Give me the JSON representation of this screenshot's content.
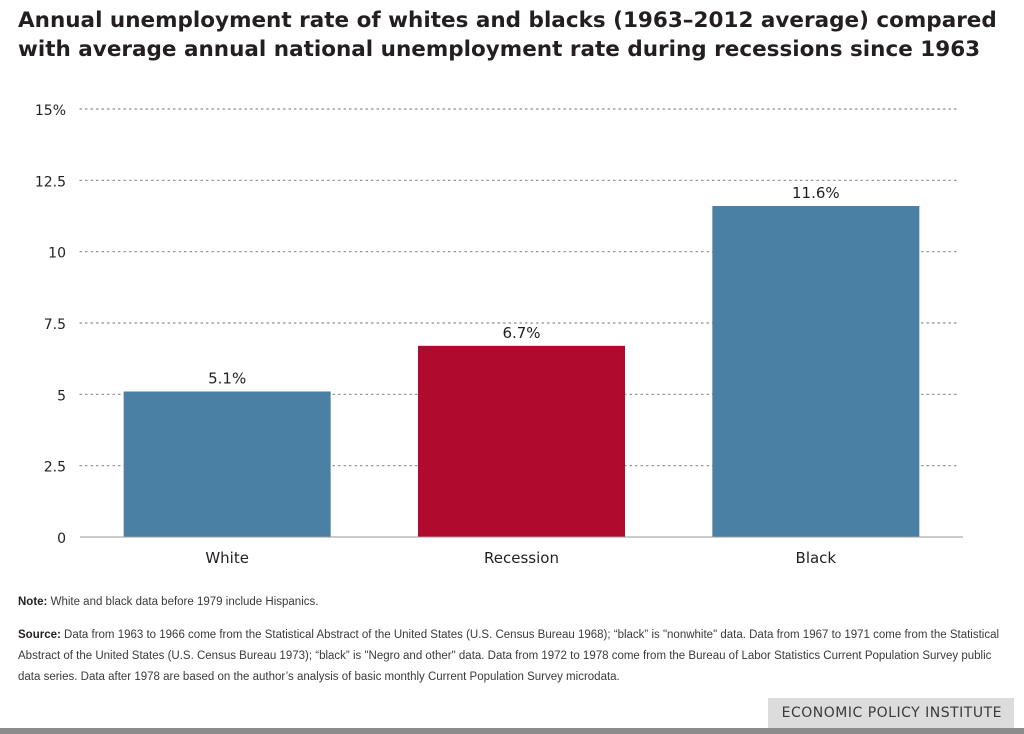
{
  "chart_data": {
    "type": "bar",
    "title": "Annual unemployment rate of whites and blacks (1963–2012 average) compared with average annual national unemployment rate during recessions since 1963",
    "categories": [
      "White",
      "Recession",
      "Black"
    ],
    "values": [
      5.1,
      6.7,
      11.6
    ],
    "value_labels": [
      "5.1%",
      "6.7%",
      "11.6%"
    ],
    "bar_colors": [
      "#4a80a4",
      "#b10a2f",
      "#4a80a4"
    ],
    "ylim": [
      0,
      15
    ],
    "yticks": [
      0,
      2.5,
      5,
      7.5,
      10,
      12.5,
      15
    ],
    "ytick_labels": [
      "0",
      "2.5",
      "5",
      "7.5",
      "10",
      "12.5",
      "15%"
    ],
    "xlabel": "",
    "ylabel": "",
    "grid": "dotted horizontal",
    "legend": "none"
  },
  "notes": {
    "note_label": "Note:",
    "note_text": " White and black data before 1979 include Hispanics.",
    "source_label": "Source:",
    "source_text": " Data from 1963 to 1966 come from the Statistical Abstract of the United States (U.S. Census Bureau 1968); “black” is \"nonwhite\" data. Data from 1967 to 1971 come from the Statistical Abstract of the United States (U.S. Census Bureau 1973); “black” is \"Negro and other\" data. Data from 1972 to 1978 come from the Bureau of Labor Statistics Current Population Survey public data series. Data after 1978 are based on the author’s analysis of basic monthly Current Population Survey microdata."
  },
  "footer": {
    "brand": "ECONOMIC POLICY INSTITUTE"
  }
}
